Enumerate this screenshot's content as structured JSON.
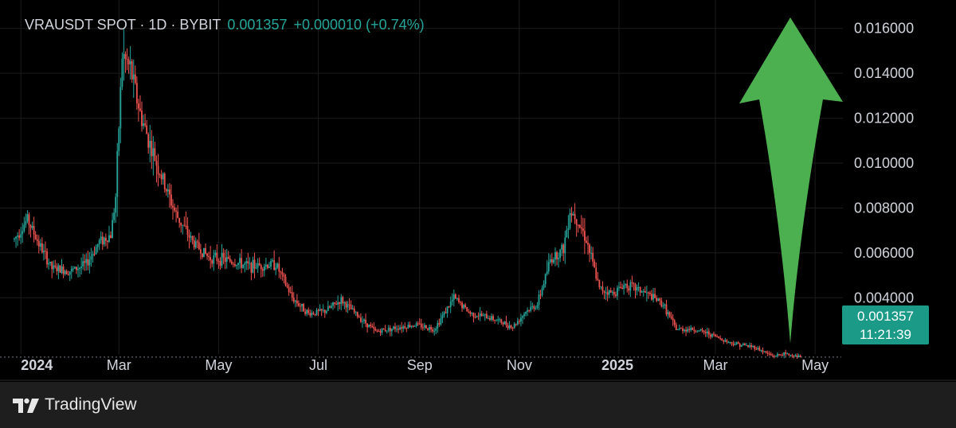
{
  "header": {
    "symbol_line": "VRAUSDT SPOT · 1D · BYBIT",
    "last_price": "0.001357",
    "change": "+0.000010 (+0.74%)"
  },
  "price_badge": {
    "price": "0.001357",
    "countdown": "11:21:39"
  },
  "footer": {
    "brand": "TradingView",
    "logo_icon": "tradingview-logo-icon"
  },
  "colors": {
    "up": "#26a69a",
    "down": "#ef5350",
    "arrow": "#4caf50",
    "badge": "#1b9a88",
    "background": "#000000"
  },
  "annotations": {
    "arrow": "big-green-up-arrow-icon"
  },
  "chart_data": {
    "type": "candlestick",
    "title": "VRAUSDT SPOT · 1D · BYBIT",
    "xlabel": "",
    "ylabel": "",
    "x_ticks": [
      {
        "label": "2024",
        "date": "2024-01-01",
        "bold": true
      },
      {
        "label": "Mar",
        "date": "2024-03-01"
      },
      {
        "label": "May",
        "date": "2024-05-01"
      },
      {
        "label": "Jul",
        "date": "2024-07-01"
      },
      {
        "label": "Sep",
        "date": "2024-09-01"
      },
      {
        "label": "Nov",
        "date": "2024-11-01"
      },
      {
        "label": "2025",
        "date": "2025-01-01",
        "bold": true
      },
      {
        "label": "Mar",
        "date": "2025-03-01"
      },
      {
        "label": "May",
        "date": "2025-05-01"
      }
    ],
    "y_ticks": [
      "0.016000",
      "0.014000",
      "0.012000",
      "0.010000",
      "0.008000",
      "0.006000",
      "0.004000"
    ],
    "xlim": [
      "2023-12-28",
      "2025-05-18"
    ],
    "ylim": [
      0.0016,
      0.0167
    ],
    "grid": true,
    "last_price": 0.001357,
    "price_anchors": [
      [
        "2023-12-28",
        0.0066
      ],
      [
        "2024-01-05",
        0.0075
      ],
      [
        "2024-01-12",
        0.0064
      ],
      [
        "2024-01-20",
        0.0053
      ],
      [
        "2024-02-01",
        0.0052
      ],
      [
        "2024-02-10",
        0.0055
      ],
      [
        "2024-02-18",
        0.0065
      ],
      [
        "2024-02-25",
        0.0068
      ],
      [
        "2024-02-28",
        0.0085
      ],
      [
        "2024-03-03",
        0.0148
      ],
      [
        "2024-03-08",
        0.0142
      ],
      [
        "2024-03-14",
        0.0122
      ],
      [
        "2024-03-22",
        0.0104
      ],
      [
        "2024-03-28",
        0.0092
      ],
      [
        "2024-04-05",
        0.0077
      ],
      [
        "2024-04-15",
        0.0065
      ],
      [
        "2024-04-25",
        0.0058
      ],
      [
        "2024-05-05",
        0.0057
      ],
      [
        "2024-05-20",
        0.0054
      ],
      [
        "2024-06-05",
        0.0055
      ],
      [
        "2024-06-15",
        0.004
      ],
      [
        "2024-06-25",
        0.0033
      ],
      [
        "2024-07-05",
        0.0034
      ],
      [
        "2024-07-15",
        0.0039
      ],
      [
        "2024-07-25",
        0.0032
      ],
      [
        "2024-08-05",
        0.0025
      ],
      [
        "2024-08-20",
        0.0027
      ],
      [
        "2024-08-30",
        0.0028
      ],
      [
        "2024-09-10",
        0.0026
      ],
      [
        "2024-09-22",
        0.004
      ],
      [
        "2024-10-02",
        0.0033
      ],
      [
        "2024-10-15",
        0.0031
      ],
      [
        "2024-10-28",
        0.0027
      ],
      [
        "2024-11-05",
        0.0034
      ],
      [
        "2024-11-12",
        0.0037
      ],
      [
        "2024-11-20",
        0.0057
      ],
      [
        "2024-11-28",
        0.0062
      ],
      [
        "2024-12-02",
        0.0079
      ],
      [
        "2024-12-06",
        0.0076
      ],
      [
        "2024-12-12",
        0.0066
      ],
      [
        "2024-12-20",
        0.0044
      ],
      [
        "2024-12-28",
        0.0042
      ],
      [
        "2025-01-05",
        0.0046
      ],
      [
        "2025-01-15",
        0.0043
      ],
      [
        "2025-01-22",
        0.004
      ],
      [
        "2025-01-28",
        0.0037
      ],
      [
        "2025-02-05",
        0.0026
      ],
      [
        "2025-02-15",
        0.0026
      ],
      [
        "2025-02-25",
        0.0024
      ],
      [
        "2025-03-10",
        0.002
      ],
      [
        "2025-03-25",
        0.0018
      ],
      [
        "2025-04-05",
        0.0014
      ],
      [
        "2025-04-12",
        0.0015
      ],
      [
        "2025-04-22",
        0.001357
      ]
    ]
  }
}
